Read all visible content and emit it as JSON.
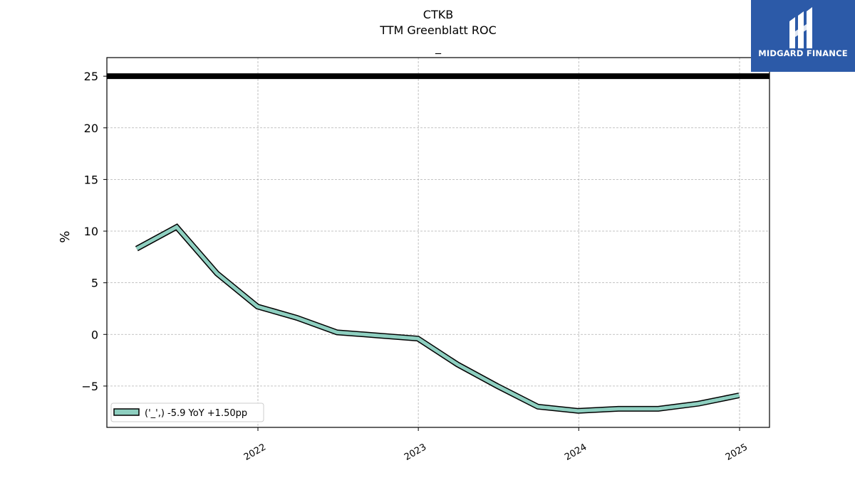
{
  "chart_data": {
    "type": "line",
    "title": "CTKB",
    "subtitle": "TTM Greenblatt ROC",
    "subtitle2": "_",
    "ylabel": "%",
    "xlabel": "",
    "ylim": [
      -9,
      26.8
    ],
    "yticks": [
      -5,
      0,
      5,
      10,
      15,
      20,
      25
    ],
    "ytick_labels": [
      "−5",
      "0",
      "5",
      "10",
      "15",
      "20",
      "25"
    ],
    "xticks": [
      "2022",
      "2023",
      "2024",
      "2025"
    ],
    "grid": true,
    "reference_line": {
      "y": 25,
      "color": "#000000"
    },
    "legend": {
      "position": "lower-left",
      "label": "('_',) -5.9 YoY +1.50pp"
    },
    "series": [
      {
        "color": "#8ecfc0",
        "points": [
          {
            "x": "2021-03-31",
            "y": 8.3
          },
          {
            "x": "2021-06-30",
            "y": 10.4
          },
          {
            "x": "2021-09-30",
            "y": 5.9
          },
          {
            "x": "2021-12-31",
            "y": 2.7
          },
          {
            "x": "2022-03-31",
            "y": 1.6
          },
          {
            "x": "2022-06-30",
            "y": 0.2
          },
          {
            "x": "2022-09-30",
            "y": -0.1
          },
          {
            "x": "2022-12-31",
            "y": -0.4
          },
          {
            "x": "2023-03-31",
            "y": -2.9
          },
          {
            "x": "2023-06-30",
            "y": -5.0
          },
          {
            "x": "2023-09-30",
            "y": -7.0
          },
          {
            "x": "2023-12-31",
            "y": -7.4
          },
          {
            "x": "2024-03-31",
            "y": -7.2
          },
          {
            "x": "2024-06-30",
            "y": -7.2
          },
          {
            "x": "2024-09-30",
            "y": -6.7
          },
          {
            "x": "2024-12-31",
            "y": -5.9
          }
        ]
      }
    ]
  },
  "logo": {
    "text": "MIDGARD FINANCE",
    "background": "#2c5aa8"
  }
}
